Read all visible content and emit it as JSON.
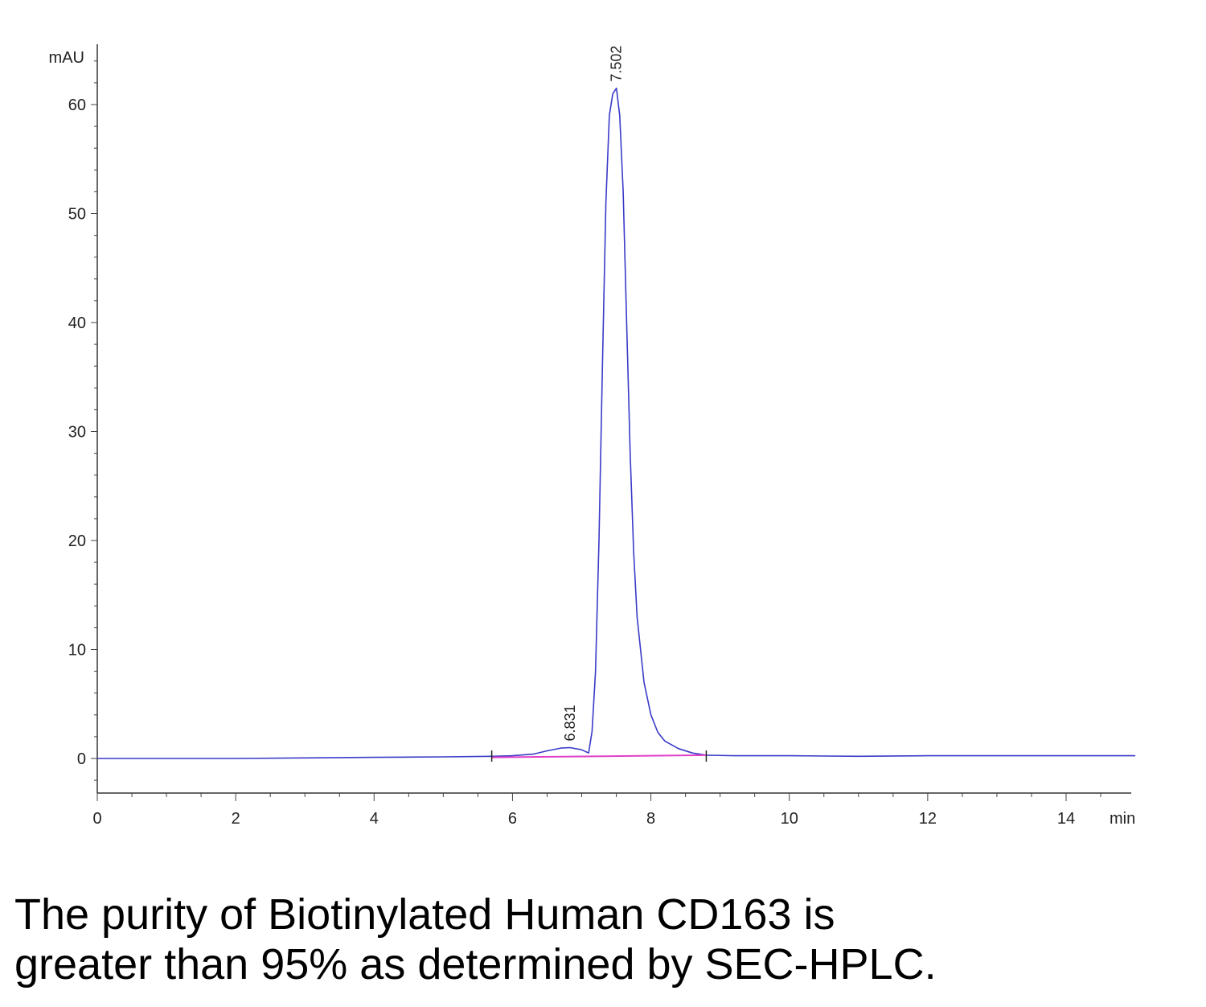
{
  "chart_data": {
    "type": "line",
    "title": "",
    "xlabel": "min",
    "ylabel": "mAU",
    "xlim": [
      0,
      15
    ],
    "ylim": [
      -3,
      65
    ],
    "x_ticks": [
      0,
      2,
      4,
      6,
      8,
      10,
      12,
      14
    ],
    "y_ticks": [
      0,
      10,
      20,
      30,
      40,
      50,
      60
    ],
    "grid": false,
    "peaks": [
      {
        "retention_time": 6.831,
        "label": "6.831",
        "height": 1.0
      },
      {
        "retention_time": 7.502,
        "label": "7.502",
        "height": 61.5
      }
    ],
    "series": [
      {
        "color": "#3a3ac8",
        "x": [
          0,
          1,
          2,
          3,
          4,
          5,
          5.7,
          6.0,
          6.3,
          6.5,
          6.7,
          6.831,
          7.0,
          7.1,
          7.15,
          7.2,
          7.25,
          7.3,
          7.35,
          7.4,
          7.45,
          7.502,
          7.55,
          7.6,
          7.65,
          7.7,
          7.75,
          7.8,
          7.9,
          8.0,
          8.1,
          8.2,
          8.4,
          8.6,
          8.8,
          9.2,
          10,
          11,
          12,
          13,
          14,
          15
        ],
        "y": [
          0,
          0,
          0,
          0.05,
          0.1,
          0.15,
          0.2,
          0.25,
          0.4,
          0.7,
          0.95,
          1.0,
          0.8,
          0.5,
          2.5,
          8,
          20,
          36,
          51,
          59,
          61,
          61.5,
          59,
          52,
          40,
          28,
          19,
          13,
          7,
          4,
          2.4,
          1.6,
          0.9,
          0.5,
          0.3,
          0.25,
          0.25,
          0.2,
          0.25,
          0.25,
          0.25,
          0.25
        ]
      },
      {
        "color": "#e040c8",
        "x": [
          5.7,
          8.8
        ],
        "y": [
          0.1,
          0.3
        ]
      }
    ]
  },
  "caption": {
    "line1": "The purity of Biotinylated Human CD163 is",
    "line2": "greater than 95% as determined by SEC-HPLC."
  }
}
